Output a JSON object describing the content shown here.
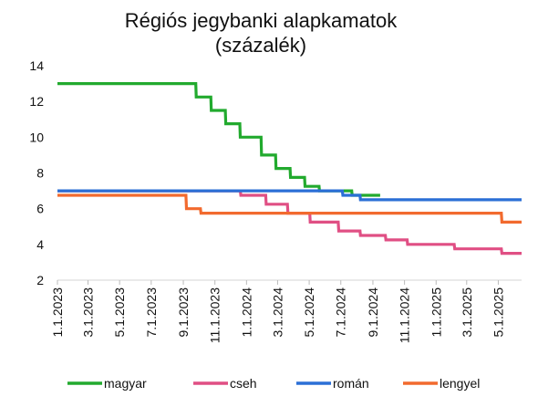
{
  "chart_data": {
    "type": "line",
    "line_style": "step",
    "title_lines": [
      "Régiós jegybanki alapkamatok",
      "(százalék)"
    ],
    "xlabel": "",
    "ylabel": "",
    "ylim": [
      2,
      14
    ],
    "yticks": [
      2,
      4,
      6,
      8,
      10,
      12,
      14
    ],
    "xlim": [
      "2023-01-01",
      "2025-06-15"
    ],
    "xticks": [
      {
        "date": "2023-01-01",
        "label": "1.1.2023"
      },
      {
        "date": "2023-03-01",
        "label": "3.1.2023"
      },
      {
        "date": "2023-05-01",
        "label": "5.1.2023"
      },
      {
        "date": "2023-07-01",
        "label": "7.1.2023"
      },
      {
        "date": "2023-09-01",
        "label": "9.1.2023"
      },
      {
        "date": "2023-11-01",
        "label": "11.1.2023"
      },
      {
        "date": "2024-01-01",
        "label": "1.1.2024"
      },
      {
        "date": "2024-03-01",
        "label": "3.1.2024"
      },
      {
        "date": "2024-05-01",
        "label": "5.1.2024"
      },
      {
        "date": "2024-07-01",
        "label": "7.1.2024"
      },
      {
        "date": "2024-09-01",
        "label": "9.1.2024"
      },
      {
        "date": "2024-11-01",
        "label": "11.1.2024"
      },
      {
        "date": "2025-01-01",
        "label": "1.1.2025"
      },
      {
        "date": "2025-03-01",
        "label": "3.1.2025"
      },
      {
        "date": "2025-05-01",
        "label": "5.1.2025"
      }
    ],
    "grid": false,
    "legend_position": "bottom",
    "series": [
      {
        "name": "magyar",
        "color": "#22aa2e",
        "points": [
          [
            "2023-01-01",
            13.0
          ],
          [
            "2023-09-25",
            13.0
          ],
          [
            "2023-09-26",
            12.25
          ],
          [
            "2023-10-24",
            12.25
          ],
          [
            "2023-10-25",
            11.5
          ],
          [
            "2023-11-21",
            11.5
          ],
          [
            "2023-11-22",
            10.75
          ],
          [
            "2023-12-19",
            10.75
          ],
          [
            "2023-12-20",
            10.0
          ],
          [
            "2024-01-29",
            10.0
          ],
          [
            "2024-01-30",
            9.0
          ],
          [
            "2024-02-26",
            9.0
          ],
          [
            "2024-02-27",
            8.25
          ],
          [
            "2024-03-25",
            8.25
          ],
          [
            "2024-03-26",
            7.75
          ],
          [
            "2024-04-22",
            7.75
          ],
          [
            "2024-04-23",
            7.25
          ],
          [
            "2024-05-20",
            7.25
          ],
          [
            "2024-05-21",
            7.0
          ],
          [
            "2024-07-22",
            7.0
          ],
          [
            "2024-07-23",
            6.75
          ],
          [
            "2024-09-15",
            6.75
          ]
        ]
      },
      {
        "name": "cseh",
        "color": "#e04f84",
        "points": [
          [
            "2023-01-01",
            7.0
          ],
          [
            "2023-12-20",
            7.0
          ],
          [
            "2023-12-21",
            6.75
          ],
          [
            "2024-02-07",
            6.75
          ],
          [
            "2024-02-08",
            6.25
          ],
          [
            "2024-03-20",
            6.25
          ],
          [
            "2024-03-21",
            5.75
          ],
          [
            "2024-05-02",
            5.75
          ],
          [
            "2024-05-03",
            5.25
          ],
          [
            "2024-06-26",
            5.25
          ],
          [
            "2024-06-27",
            4.75
          ],
          [
            "2024-08-07",
            4.75
          ],
          [
            "2024-08-08",
            4.5
          ],
          [
            "2024-09-25",
            4.5
          ],
          [
            "2024-09-26",
            4.25
          ],
          [
            "2024-11-06",
            4.25
          ],
          [
            "2024-11-07",
            4.0
          ],
          [
            "2025-02-05",
            4.0
          ],
          [
            "2025-02-06",
            3.75
          ],
          [
            "2025-05-07",
            3.75
          ],
          [
            "2025-05-08",
            3.5
          ],
          [
            "2025-06-15",
            3.5
          ]
        ]
      },
      {
        "name": "román",
        "color": "#2b6fd6",
        "points": [
          [
            "2023-01-01",
            7.0
          ],
          [
            "2024-07-04",
            7.0
          ],
          [
            "2024-07-05",
            6.75
          ],
          [
            "2024-08-07",
            6.75
          ],
          [
            "2024-08-08",
            6.5
          ],
          [
            "2025-06-15",
            6.5
          ]
        ]
      },
      {
        "name": "lengyel",
        "color": "#f26a2e",
        "points": [
          [
            "2023-01-01",
            6.75
          ],
          [
            "2023-09-06",
            6.75
          ],
          [
            "2023-09-07",
            6.0
          ],
          [
            "2023-10-04",
            6.0
          ],
          [
            "2023-10-05",
            5.75
          ],
          [
            "2025-05-07",
            5.75
          ],
          [
            "2025-05-08",
            5.25
          ],
          [
            "2025-06-15",
            5.25
          ]
        ]
      }
    ]
  }
}
